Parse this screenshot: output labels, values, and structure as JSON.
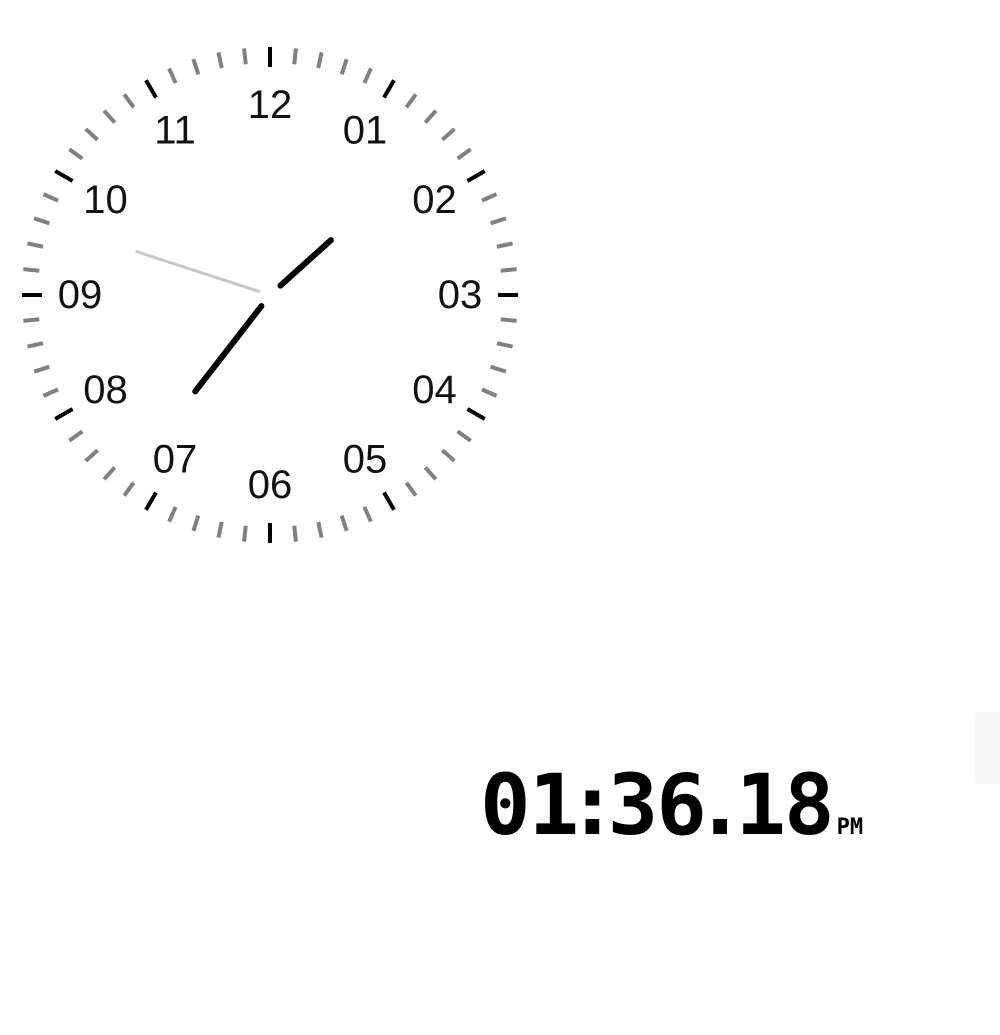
{
  "analog_clock": {
    "hour_labels": [
      "12",
      "01",
      "02",
      "03",
      "04",
      "05",
      "06",
      "07",
      "08",
      "09",
      "10",
      "11"
    ],
    "time": {
      "hours": 13,
      "minutes": 36,
      "seconds": 18
    },
    "colors": {
      "major_tick": "#000000",
      "minor_tick": "#808080",
      "hour_hand": "#000000",
      "minute_hand": "#000000",
      "second_hand": "#c8c8c8",
      "labels": "#111111"
    }
  },
  "digital_clock": {
    "hours": "01",
    "separator1": ":",
    "minutes": "36",
    "separator2": ".",
    "seconds": "18",
    "ampm": "PM"
  }
}
